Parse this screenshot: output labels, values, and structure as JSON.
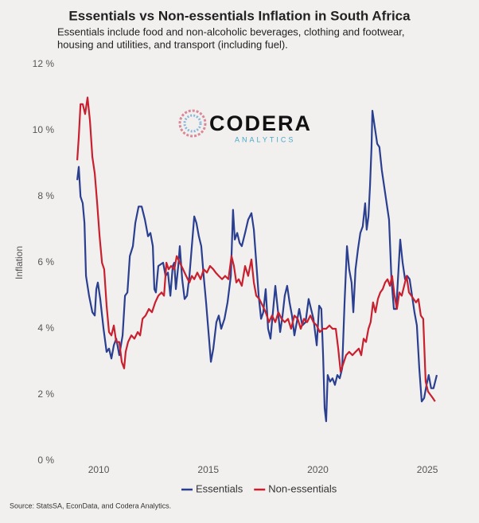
{
  "chart_data": {
    "type": "line",
    "title": "Essentials vs Non-essentials Inflation in South Africa",
    "subtitle": [
      "Essentials include food and non-alcoholic beverages, clothing and footwear,",
      "housing and utilities, and transport (including fuel)."
    ],
    "ylabel": "Inflation",
    "logo": [
      "CODERA",
      "ANALYTICS"
    ],
    "source": "Source: StatsSA, EconData, and Codera Analytics.",
    "legend": "bottom",
    "grid": false,
    "xlim": [
      2008.4,
      2025.83
    ],
    "xticks": [
      2010,
      2015,
      2020,
      2025
    ],
    "ylim": [
      0,
      12
    ],
    "yticks": [
      {
        "value": 0,
        "label": "0 %"
      },
      {
        "value": 2,
        "label": "2 %"
      },
      {
        "value": 4,
        "label": "4 %"
      },
      {
        "value": 6,
        "label": "6 %"
      },
      {
        "value": 8,
        "label": "8 %"
      },
      {
        "value": 10,
        "label": "10 %"
      },
      {
        "value": 12,
        "label": "12 %"
      }
    ],
    "series": [
      {
        "name": "Essentials",
        "color": "#2a3f8f",
        "x": [
          2009.02,
          2009.09,
          2009.17,
          2009.27,
          2009.35,
          2009.42,
          2009.56,
          2009.71,
          2009.82,
          2009.89,
          2009.96,
          2010.07,
          2010.22,
          2010.36,
          2010.47,
          2010.58,
          2010.69,
          2010.8,
          2010.94,
          2011.09,
          2011.2,
          2011.31,
          2011.42,
          2011.56,
          2011.67,
          2011.82,
          2011.96,
          2012.11,
          2012.25,
          2012.36,
          2012.47,
          2012.54,
          2012.61,
          2012.72,
          2012.94,
          2013.05,
          2013.16,
          2013.27,
          2013.38,
          2013.45,
          2013.52,
          2013.63,
          2013.7,
          2013.81,
          2013.92,
          2014.03,
          2014.14,
          2014.25,
          2014.36,
          2014.46,
          2014.57,
          2014.68,
          2014.79,
          2014.9,
          2015.01,
          2015.12,
          2015.23,
          2015.37,
          2015.48,
          2015.59,
          2015.74,
          2015.88,
          2016.03,
          2016.13,
          2016.21,
          2016.32,
          2016.43,
          2016.53,
          2016.68,
          2016.82,
          2016.97,
          2017.08,
          2017.19,
          2017.3,
          2017.41,
          2017.51,
          2017.62,
          2017.73,
          2017.84,
          2017.95,
          2018.06,
          2018.17,
          2018.28,
          2018.39,
          2018.49,
          2018.6,
          2018.71,
          2018.82,
          2018.93,
          2019.04,
          2019.15,
          2019.29,
          2019.44,
          2019.58,
          2019.69,
          2019.8,
          2019.95,
          2020.06,
          2020.16,
          2020.24,
          2020.31,
          2020.38,
          2020.45,
          2020.56,
          2020.67,
          2020.78,
          2020.89,
          2021.0,
          2021.11,
          2021.22,
          2021.33,
          2021.43,
          2021.54,
          2021.62,
          2021.72,
          2021.83,
          2021.94,
          2022.05,
          2022.16,
          2022.23,
          2022.31,
          2022.38,
          2022.45,
          2022.49,
          2022.6,
          2022.71,
          2022.81,
          2022.92,
          2023.03,
          2023.14,
          2023.25,
          2023.36,
          2023.47,
          2023.58,
          2023.69,
          2023.76,
          2023.87,
          2023.98,
          2024.08,
          2024.19,
          2024.3,
          2024.41,
          2024.52,
          2024.63,
          2024.74,
          2024.85,
          2024.96,
          2025.06,
          2025.17,
          2025.28,
          2025.43
        ],
        "values": [
          8.5,
          8.9,
          8.0,
          7.8,
          7.2,
          5.6,
          5.0,
          4.5,
          4.4,
          5.2,
          5.4,
          4.9,
          4.0,
          3.3,
          3.4,
          3.1,
          3.5,
          3.7,
          3.2,
          3.8,
          5.0,
          5.1,
          6.2,
          6.5,
          7.2,
          7.7,
          7.7,
          7.3,
          6.8,
          6.9,
          6.5,
          5.2,
          5.1,
          5.9,
          6.0,
          5.6,
          5.7,
          5.0,
          5.9,
          6.0,
          5.2,
          5.9,
          6.5,
          5.5,
          4.9,
          5.0,
          5.6,
          6.5,
          7.4,
          7.2,
          6.8,
          6.5,
          5.6,
          4.8,
          3.9,
          3.0,
          3.4,
          4.2,
          4.4,
          4.0,
          4.3,
          4.8,
          5.6,
          7.6,
          6.7,
          6.9,
          6.6,
          6.5,
          6.9,
          7.3,
          7.5,
          7.0,
          6.0,
          5.0,
          4.3,
          4.5,
          5.2,
          4.0,
          3.7,
          4.5,
          5.3,
          4.6,
          3.9,
          4.4,
          5.0,
          5.3,
          4.8,
          4.4,
          3.8,
          4.2,
          4.6,
          4.1,
          4.2,
          4.9,
          4.6,
          4.3,
          3.5,
          4.7,
          4.6,
          3.2,
          1.6,
          1.2,
          2.6,
          2.4,
          2.5,
          2.3,
          2.6,
          2.5,
          2.8,
          4.8,
          6.5,
          5.8,
          5.4,
          4.5,
          5.8,
          6.4,
          6.9,
          7.1,
          7.8,
          7.0,
          7.4,
          8.3,
          9.5,
          10.6,
          10.1,
          9.6,
          9.5,
          8.8,
          8.3,
          7.8,
          7.3,
          5.5,
          4.6,
          4.6,
          5.9,
          6.7,
          6.0,
          5.5,
          5.6,
          5.5,
          5.0,
          4.5,
          4.1,
          2.8,
          1.8,
          1.9,
          2.3,
          2.6,
          2.2,
          2.2,
          2.6
        ]
      },
      {
        "name": "Non-essentials",
        "color": "#c8202f",
        "x": [
          2009.02,
          2009.09,
          2009.17,
          2009.27,
          2009.38,
          2009.49,
          2009.6,
          2009.71,
          2009.82,
          2009.93,
          2010.04,
          2010.15,
          2010.25,
          2010.36,
          2010.47,
          2010.58,
          2010.69,
          2010.8,
          2010.94,
          2011.05,
          2011.16,
          2011.23,
          2011.34,
          2011.49,
          2011.63,
          2011.78,
          2011.89,
          2012.0,
          2012.14,
          2012.29,
          2012.43,
          2012.58,
          2012.72,
          2012.87,
          2012.98,
          2013.09,
          2013.19,
          2013.3,
          2013.45,
          2013.56,
          2013.7,
          2013.85,
          2013.99,
          2014.14,
          2014.25,
          2014.36,
          2014.5,
          2014.65,
          2014.79,
          2014.94,
          2015.08,
          2015.23,
          2015.34,
          2015.48,
          2015.63,
          2015.77,
          2015.92,
          2016.06,
          2016.17,
          2016.28,
          2016.39,
          2016.53,
          2016.68,
          2016.82,
          2016.97,
          2017.08,
          2017.19,
          2017.33,
          2017.48,
          2017.62,
          2017.77,
          2017.91,
          2018.06,
          2018.2,
          2018.35,
          2018.49,
          2018.64,
          2018.78,
          2018.93,
          2019.08,
          2019.22,
          2019.37,
          2019.51,
          2019.66,
          2019.8,
          2019.95,
          2020.09,
          2020.24,
          2020.38,
          2020.53,
          2020.67,
          2020.82,
          2020.93,
          2021.04,
          2021.14,
          2021.29,
          2021.43,
          2021.58,
          2021.72,
          2021.87,
          2021.98,
          2022.09,
          2022.2,
          2022.31,
          2022.41,
          2022.52,
          2022.63,
          2022.74,
          2022.85,
          2022.96,
          2023.07,
          2023.18,
          2023.29,
          2023.39,
          2023.5,
          2023.61,
          2023.72,
          2023.83,
          2023.94,
          2024.05,
          2024.16,
          2024.27,
          2024.37,
          2024.48,
          2024.59,
          2024.7,
          2024.81,
          2024.92,
          2025.03,
          2025.14,
          2025.25,
          2025.35
        ],
        "values": [
          9.1,
          9.8,
          10.8,
          10.8,
          10.5,
          11.0,
          10.3,
          9.2,
          8.7,
          7.8,
          6.8,
          6.0,
          5.8,
          4.7,
          3.9,
          3.8,
          4.1,
          3.6,
          3.6,
          3.0,
          2.8,
          3.3,
          3.6,
          3.8,
          3.7,
          3.9,
          3.8,
          4.3,
          4.4,
          4.6,
          4.5,
          4.8,
          5.0,
          5.1,
          5.0,
          6.0,
          5.8,
          5.9,
          5.8,
          6.2,
          6.0,
          5.8,
          5.6,
          5.4,
          5.6,
          5.5,
          5.7,
          5.5,
          5.8,
          5.7,
          5.9,
          5.8,
          5.7,
          5.6,
          5.5,
          5.6,
          5.5,
          6.2,
          5.9,
          5.4,
          5.5,
          5.3,
          5.9,
          5.6,
          6.1,
          5.4,
          5.0,
          4.9,
          4.7,
          4.5,
          4.2,
          4.4,
          4.2,
          4.5,
          4.3,
          4.2,
          4.3,
          4.0,
          4.4,
          4.3,
          4.0,
          4.3,
          4.2,
          4.4,
          4.2,
          4.1,
          3.9,
          4.0,
          4.0,
          4.1,
          4.0,
          4.0,
          3.4,
          2.7,
          2.9,
          3.2,
          3.3,
          3.2,
          3.3,
          3.4,
          3.2,
          3.7,
          3.6,
          4.0,
          4.2,
          4.8,
          4.5,
          4.9,
          5.1,
          5.2,
          5.4,
          5.5,
          5.3,
          5.6,
          5.0,
          4.6,
          5.1,
          5.0,
          5.3,
          5.6,
          5.1,
          5.0,
          4.9,
          4.8,
          4.9,
          4.4,
          4.3,
          2.4,
          2.1,
          2.0,
          1.9,
          1.8
        ]
      }
    ]
  }
}
